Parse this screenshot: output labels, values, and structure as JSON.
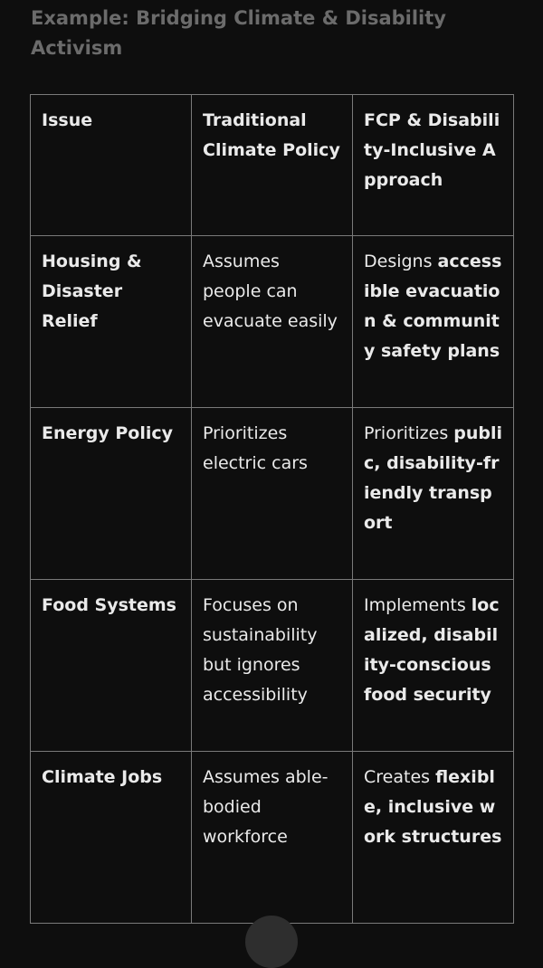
{
  "title": "Example: Bridging Climate & Disability Activism",
  "table": {
    "headers": [
      "Issue",
      "Traditional Climate Policy",
      "FCP & Disability-Inclusive Approach"
    ],
    "rows": [
      {
        "issue": "Housing & Disaster Relief",
        "traditional": "Assumes people can evacuate easily",
        "fcp_prefix": "Designs",
        "fcp_bold": "accessible evacuation & community safety plans"
      },
      {
        "issue": "Energy Policy",
        "traditional": "Prioritizes electric cars",
        "fcp_prefix": "Prioritizes",
        "fcp_bold": "public, disability-friendly transport"
      },
      {
        "issue": "Food Systems",
        "traditional": "Focuses on sustainability but ignores accessibility",
        "fcp_prefix": "Implements",
        "fcp_bold": "localized, disability-conscious food security"
      },
      {
        "issue": "Climate Jobs",
        "traditional": "Assumes able-bodied workforce",
        "fcp_prefix": "Creates",
        "fcp_bold": "flexible, inclusive work structures"
      }
    ]
  },
  "colors": {
    "background": "#0e0e0e",
    "text": "#eaeaea",
    "title": "#6b6b6b",
    "border": "#7a7a7a"
  }
}
